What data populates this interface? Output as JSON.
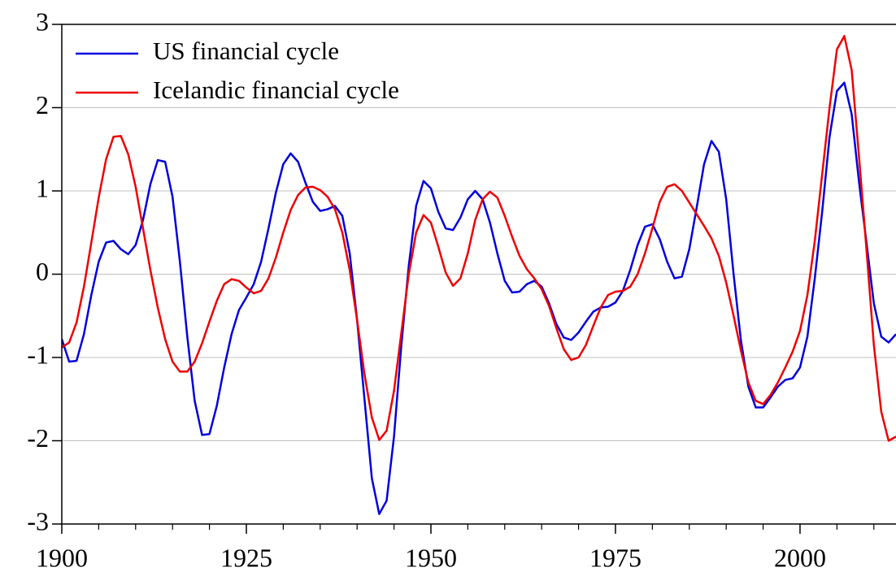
{
  "chart_data": {
    "type": "line",
    "x": [
      1900,
      1901,
      1902,
      1903,
      1904,
      1905,
      1906,
      1907,
      1908,
      1909,
      1910,
      1911,
      1912,
      1913,
      1914,
      1915,
      1916,
      1917,
      1918,
      1919,
      1920,
      1921,
      1922,
      1923,
      1924,
      1925,
      1926,
      1927,
      1928,
      1929,
      1930,
      1931,
      1932,
      1933,
      1934,
      1935,
      1936,
      1937,
      1938,
      1939,
      1940,
      1941,
      1942,
      1943,
      1944,
      1945,
      1946,
      1947,
      1948,
      1949,
      1950,
      1951,
      1952,
      1953,
      1954,
      1955,
      1956,
      1957,
      1958,
      1959,
      1960,
      1961,
      1962,
      1963,
      1964,
      1965,
      1966,
      1967,
      1968,
      1969,
      1970,
      1971,
      1972,
      1973,
      1974,
      1975,
      1976,
      1977,
      1978,
      1979,
      1980,
      1981,
      1982,
      1983,
      1984,
      1985,
      1986,
      1987,
      1988,
      1989,
      1990,
      1991,
      1992,
      1993,
      1994,
      1995,
      1996,
      1997,
      1998,
      1999,
      2000,
      2001,
      2002,
      2003,
      2004,
      2005,
      2006,
      2007,
      2008,
      2009,
      2010,
      2011,
      2012,
      2013
    ],
    "series": [
      {
        "name": "US financial cycle",
        "color": "#0000dd",
        "values": [
          -0.78,
          -1.05,
          -1.04,
          -0.72,
          -0.25,
          0.15,
          0.38,
          0.4,
          0.3,
          0.24,
          0.35,
          0.65,
          1.08,
          1.37,
          1.35,
          0.93,
          0.15,
          -0.75,
          -1.52,
          -1.93,
          -1.92,
          -1.58,
          -1.12,
          -0.72,
          -0.43,
          -0.28,
          -0.12,
          0.15,
          0.55,
          0.98,
          1.32,
          1.45,
          1.35,
          1.1,
          0.87,
          0.76,
          0.78,
          0.82,
          0.7,
          0.25,
          -0.55,
          -1.5,
          -2.45,
          -2.88,
          -2.72,
          -1.95,
          -0.85,
          0.1,
          0.82,
          1.12,
          1.03,
          0.75,
          0.55,
          0.53,
          0.68,
          0.9,
          1.0,
          0.9,
          0.62,
          0.25,
          -0.08,
          -0.22,
          -0.21,
          -0.12,
          -0.08,
          -0.15,
          -0.35,
          -0.6,
          -0.76,
          -0.79,
          -0.7,
          -0.57,
          -0.45,
          -0.4,
          -0.39,
          -0.34,
          -0.2,
          0.05,
          0.35,
          0.57,
          0.6,
          0.42,
          0.15,
          -0.05,
          -0.03,
          0.3,
          0.8,
          1.32,
          1.6,
          1.47,
          0.9,
          0.0,
          -0.8,
          -1.35,
          -1.6,
          -1.6,
          -1.48,
          -1.35,
          -1.27,
          -1.25,
          -1.12,
          -0.75,
          -0.05,
          0.75,
          1.65,
          2.2,
          2.3,
          1.92,
          1.1,
          0.38,
          -0.35,
          -0.75,
          -0.82,
          -0.72
        ]
      },
      {
        "name": "Icelandic financial cycle",
        "color": "#ee0000",
        "values": [
          -0.88,
          -0.82,
          -0.58,
          -0.15,
          0.38,
          0.92,
          1.38,
          1.65,
          1.66,
          1.44,
          1.05,
          0.55,
          0.05,
          -0.4,
          -0.78,
          -1.05,
          -1.17,
          -1.17,
          -1.05,
          -0.83,
          -0.57,
          -0.32,
          -0.12,
          -0.06,
          -0.08,
          -0.16,
          -0.23,
          -0.2,
          -0.05,
          0.2,
          0.5,
          0.77,
          0.95,
          1.04,
          1.05,
          1.01,
          0.93,
          0.78,
          0.5,
          0.05,
          -0.55,
          -1.2,
          -1.72,
          -1.99,
          -1.88,
          -1.4,
          -0.7,
          0.0,
          0.5,
          0.71,
          0.62,
          0.33,
          0.02,
          -0.14,
          -0.05,
          0.25,
          0.65,
          0.9,
          0.99,
          0.92,
          0.7,
          0.45,
          0.22,
          0.06,
          -0.05,
          -0.18,
          -0.38,
          -0.65,
          -0.9,
          -1.03,
          -1.0,
          -0.85,
          -0.62,
          -0.4,
          -0.25,
          -0.21,
          -0.2,
          -0.15,
          0.0,
          0.25,
          0.55,
          0.87,
          1.05,
          1.08,
          1.0,
          0.86,
          0.72,
          0.58,
          0.43,
          0.22,
          -0.1,
          -0.5,
          -0.92,
          -1.3,
          -1.52,
          -1.56,
          -1.45,
          -1.3,
          -1.12,
          -0.93,
          -0.68,
          -0.25,
          0.4,
          1.2,
          2.0,
          2.7,
          2.86,
          2.45,
          1.4,
          0.3,
          -0.85,
          -1.65,
          -2.0,
          -1.95
        ]
      }
    ],
    "xlim": [
      1900,
      2013
    ],
    "xticks": [
      1900,
      1925,
      1950,
      1975,
      2000
    ],
    "xminorticks": [
      1905,
      1910,
      1915,
      1920,
      1930,
      1935,
      1940,
      1945,
      1955,
      1960,
      1965,
      1970,
      1980,
      1985,
      1990,
      1995,
      2005,
      2010
    ],
    "ylim": [
      -3,
      3
    ],
    "yticks": [
      -3,
      -2,
      -1,
      0,
      1,
      2,
      3
    ],
    "grid": true,
    "legend": "top-left"
  }
}
